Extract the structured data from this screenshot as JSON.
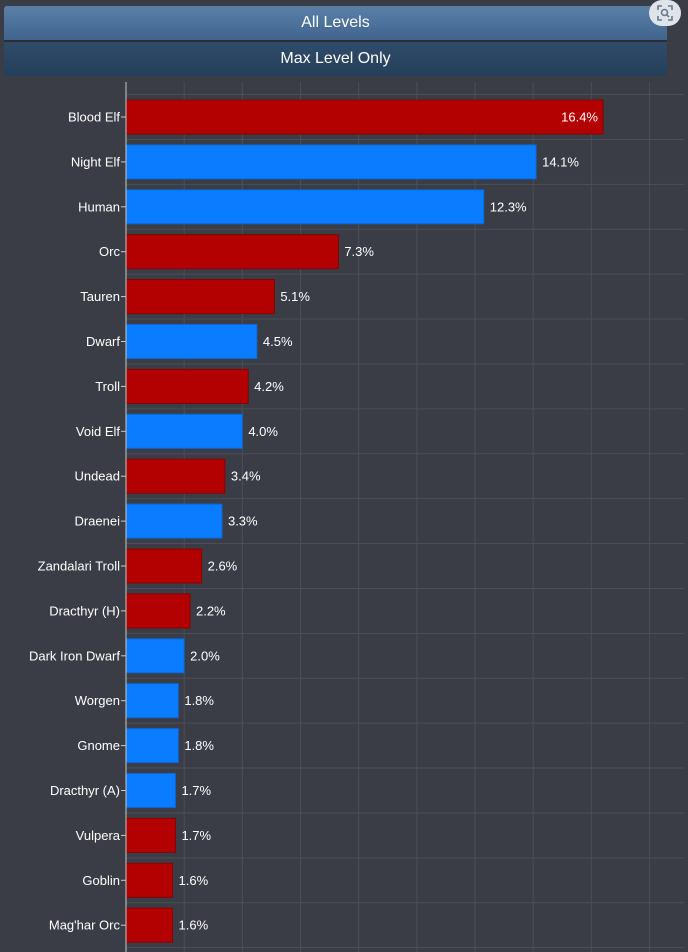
{
  "tabs": {
    "all_levels": "All Levels",
    "max_level_only": "Max Level Only"
  },
  "icons": {
    "lens": "image-search-icon"
  },
  "colors": {
    "horde": "#b30000",
    "alliance": "#0a7cff",
    "background": "#3a3d45",
    "grid": "#4b4e57"
  },
  "chart_data": {
    "type": "bar",
    "orientation": "horizontal",
    "title": "",
    "xlabel": "",
    "ylabel": "",
    "grid": true,
    "categories": [
      "Blood Elf",
      "Night Elf",
      "Human",
      "Orc",
      "Tauren",
      "Dwarf",
      "Troll",
      "Void Elf",
      "Undead",
      "Draenei",
      "Zandalari Troll",
      "Dracthyr (H)",
      "Dark Iron Dwarf",
      "Worgen",
      "Gnome",
      "Dracthyr (A)",
      "Vulpera",
      "Goblin",
      "Mag'har Orc"
    ],
    "values": [
      16.4,
      14.1,
      12.3,
      7.3,
      5.1,
      4.5,
      4.2,
      4.0,
      3.4,
      3.3,
      2.6,
      2.2,
      2.0,
      1.8,
      1.8,
      1.7,
      1.7,
      1.6,
      1.6
    ],
    "labels": [
      "16.4%",
      "14.1%",
      "12.3%",
      "7.3%",
      "5.1%",
      "4.5%",
      "4.2%",
      "4.0%",
      "3.4%",
      "3.3%",
      "2.6%",
      "2.2%",
      "2.0%",
      "1.8%",
      "1.8%",
      "1.7%",
      "1.7%",
      "1.6%",
      "1.6%"
    ],
    "factions": [
      "horde",
      "alliance",
      "alliance",
      "horde",
      "horde",
      "alliance",
      "horde",
      "alliance",
      "horde",
      "alliance",
      "horde",
      "horde",
      "alliance",
      "alliance",
      "alliance",
      "alliance",
      "horde",
      "horde",
      "horde"
    ]
  }
}
